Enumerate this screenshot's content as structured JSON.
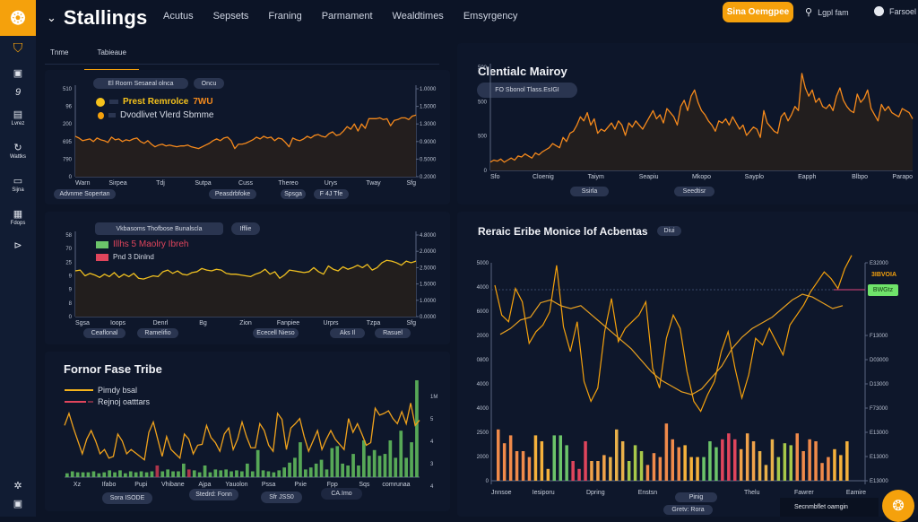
{
  "app": {
    "brand": "Stallings",
    "nav": [
      "Acutus",
      "Sepsets",
      "Franing",
      "Parmament",
      "Wealdtimes",
      "Emsyrgency"
    ],
    "cta_label": "Sina Oemgpee",
    "top_links": [
      {
        "icon": "location-icon",
        "label": "Lgpl fam"
      },
      {
        "icon": "user-icon",
        "label": "Farsoel"
      }
    ],
    "colors": {
      "accent": "#f5a10c",
      "bg": "#0c1426",
      "panel": "#0e172b",
      "sidebar": "#111c33",
      "green": "#6fe36a",
      "red": "#e0455c"
    }
  },
  "sidebar": {
    "items": [
      {
        "icon": "shield-icon",
        "label": ""
      },
      {
        "icon": "briefcase-icon",
        "label": ""
      },
      {
        "icon": "nine-icon",
        "label": ""
      },
      {
        "icon": "document-icon",
        "label": "Lvrez"
      },
      {
        "icon": "refresh-icon",
        "label": "Wattks"
      },
      {
        "icon": "monitor-icon",
        "label": "Sijna"
      },
      {
        "icon": "grid-icon",
        "label": "Fdops"
      },
      {
        "icon": "play-icon",
        "label": ""
      }
    ],
    "bottom": [
      {
        "icon": "settings-icon"
      },
      {
        "icon": "briefcase-icon"
      }
    ]
  },
  "tabs": [
    {
      "label": "Tnme",
      "active": false
    },
    {
      "label": "Tabieaue",
      "active": true
    }
  ],
  "panels": {
    "p1": {
      "chips_top": [
        "El Roorn Sesaeal olnca",
        "Oncu"
      ],
      "chips_bottom": [
        "Advnme Sopertan",
        "Peasdrbfoke",
        "Spsga",
        "F 4J Tfe"
      ]
    },
    "p2": {
      "chips_top": [
        "Vkbasoms Thofbose Bunalscla",
        "Ifflie"
      ],
      "chips_bottom": [
        "Ceaflonal",
        "Ramelifio",
        "Ececell Nieso",
        "Aks Il",
        "Rasuel"
      ]
    },
    "p3": {
      "title": "Fornor Fase Tribe",
      "chips_bottom": [
        "Sora ISODE",
        "Stedrd: Fonn",
        "Sfr JSS0",
        "CA.Imo"
      ]
    },
    "p4": {
      "title": "Clentialc Mairoy",
      "chip": "FO  Sbonol Tlass.EsIGI",
      "chips_bottom": [
        "Ssirla",
        "Seedtisr"
      ]
    },
    "p5": {
      "title": "Reraic Eribe Monice lof Acbentas",
      "badge": "Diui",
      "tag_green": "BWGtz",
      "tag_orange": "3IBVOIA",
      "chips_bottom": [
        "Pinig",
        "Gretv: Rora"
      ]
    }
  },
  "toast": {
    "label": "Secnmbflet oamgin"
  },
  "chart_data": [
    {
      "type": "area",
      "title": "",
      "legend": [
        {
          "name": "Prest Remrolce",
          "suffix": "7WU",
          "color": "#f5c21c"
        },
        {
          "name": "Dvodlivet Vlerd Sbmme",
          "color": "#f5a10c"
        }
      ],
      "categories": [
        "Warn",
        "Sirpea",
        "Tdj",
        "Sutpa",
        "Cuss",
        "Thereo",
        "Urys",
        "Tway",
        "Sfg"
      ],
      "y_left_ticks": [
        "510",
        "96",
        "200",
        "695",
        "790",
        "0"
      ],
      "y_right_ticks": [
        "1.0000",
        "1.5000",
        "1.3000",
        "0.9000",
        "0.5000",
        "0.2000"
      ],
      "ylim": [
        0,
        100
      ],
      "series": [
        {
          "name": "Prest Remrolce",
          "color": "#f5891c",
          "values": [
            46,
            44,
            41,
            42,
            43,
            40,
            44,
            42,
            41,
            39,
            45,
            42,
            43,
            40,
            42,
            41,
            43,
            44,
            40,
            38,
            41,
            37,
            34,
            36,
            37,
            35,
            36,
            35,
            34,
            35,
            35,
            36,
            34,
            33,
            32,
            34,
            36,
            38,
            41,
            43,
            41,
            44,
            45,
            41,
            32,
            37,
            37,
            38,
            40,
            42,
            45,
            43,
            46,
            44,
            45,
            41,
            44,
            43,
            39,
            34,
            44,
            42,
            41,
            43,
            46,
            44,
            47,
            48,
            46,
            45,
            49,
            51,
            47,
            48,
            52,
            57,
            54,
            60,
            52,
            60,
            55,
            66,
            66,
            66,
            67,
            65,
            66,
            58,
            64,
            65,
            67,
            67,
            65,
            69,
            70
          ]
        }
      ]
    },
    {
      "type": "area",
      "title": "",
      "legend": [
        {
          "name": "Illhs 5 Maolry Ibreh",
          "color": "#6cc46a"
        },
        {
          "name": "Pnd 3 Dinlnd",
          "color": "#e0455c"
        }
      ],
      "categories": [
        "Sgsa",
        "Ioops",
        "Denrl",
        "Bg",
        "Zion",
        "Fanpiee",
        "Urprs",
        "Tzpa",
        "Sfg"
      ],
      "y_left_ticks": [
        "58",
        "70",
        "25",
        "9",
        "9",
        "8",
        "0"
      ],
      "y_right_ticks": [
        "4.8000",
        "2.0000",
        "2.5000",
        "1.5000",
        "1.0000",
        "0.0000"
      ],
      "ylim": [
        0,
        100
      ],
      "series": [
        {
          "name": "Illhs 5 Maolry Ibreh",
          "color": "#f0c020",
          "values": [
            56,
            57,
            50,
            53,
            51,
            48,
            52,
            49,
            54,
            48,
            52,
            49,
            53,
            47,
            46,
            48,
            50,
            49,
            55,
            57,
            53,
            56,
            52,
            51,
            54,
            55,
            59,
            57,
            56,
            58,
            57,
            53,
            52,
            52,
            51,
            50,
            49,
            52,
            54,
            58,
            52,
            55,
            47,
            51,
            57,
            56,
            55,
            54,
            55,
            60,
            55,
            52,
            62,
            58,
            56,
            61,
            58,
            60,
            63,
            60,
            64,
            57,
            60,
            66,
            69,
            68,
            66,
            63,
            68,
            66,
            68
          ]
        }
      ]
    },
    {
      "type": "bar+line",
      "title": "Fornor Fase Tribe",
      "legend": [
        {
          "name": "Pimdy bsal",
          "color": "#f5b31c"
        },
        {
          "name": "Rejnoj oatttars",
          "color": "#e0455c"
        }
      ],
      "categories": [
        "Xz",
        "Ifabo",
        "Pupi",
        "Vhibane",
        "Ajpa",
        "Yauolon",
        "Pssa",
        "Pxie",
        "Fpp",
        "Sqs",
        "comrunaa"
      ],
      "y_right_ticks": [
        "1M",
        "5",
        "4",
        "3",
        "4"
      ],
      "ylim": [
        0,
        100
      ],
      "series": [
        {
          "name": "Pimdy bsal",
          "color": "#f0a21c",
          "values": [
            58,
            72,
            55,
            40,
            25,
            42,
            52,
            40,
            25,
            30,
            20,
            22,
            48,
            40,
            25,
            30,
            26,
            22,
            18,
            50,
            62,
            42,
            22,
            45,
            30,
            25,
            20,
            48,
            42,
            25,
            35,
            36,
            58,
            44,
            38,
            28,
            48,
            55,
            30,
            42,
            62,
            45,
            32,
            32,
            60,
            52,
            35,
            28,
            72,
            65,
            30,
            55,
            60,
            66,
            45,
            28,
            40,
            52,
            30,
            42,
            52,
            42,
            36,
            30,
            66,
            50,
            60,
            48,
            35,
            38,
            78,
            70,
            72,
            75,
            66,
            60,
            74,
            60,
            84,
            58,
            64
          ]
        },
        {
          "name": "Volume",
          "color": "#6cc46a",
          "values": [
            4,
            6,
            5,
            5,
            5,
            6,
            4,
            5,
            7,
            5,
            7,
            4,
            6,
            5,
            6,
            5,
            6,
            12,
            6,
            8,
            6,
            6,
            14,
            8,
            7,
            5,
            12,
            5,
            8,
            7,
            8,
            6,
            7,
            6,
            14,
            6,
            28,
            7,
            6,
            5,
            7,
            10,
            15,
            20,
            36,
            8,
            10,
            14,
            18,
            8,
            30,
            32,
            14,
            12,
            24,
            12,
            38,
            22,
            28,
            22,
            24,
            38,
            20,
            48,
            20,
            36,
            100
          ]
        }
      ]
    },
    {
      "type": "area",
      "title": "Clentialc Mairoy",
      "categories": [
        "Sfo",
        "Cloenig",
        "Taiym",
        "Seapiu",
        "Mkopo",
        "Sayplo",
        "Eapph",
        "Blbpo",
        "Parapo"
      ],
      "y_left_ticks": [
        "500",
        "500",
        "500",
        "0"
      ],
      "ylim": [
        0,
        100
      ],
      "series": [
        {
          "name": "Clentialc Mairoy",
          "color": "#f5891c",
          "values": [
            8,
            10,
            9,
            11,
            8,
            10,
            12,
            10,
            14,
            13,
            16,
            14,
            12,
            17,
            15,
            18,
            20,
            22,
            26,
            24,
            22,
            32,
            28,
            36,
            38,
            44,
            52,
            48,
            56,
            44,
            50,
            36,
            40,
            38,
            42,
            46,
            40,
            48,
            44,
            34,
            46,
            42,
            48,
            44,
            40,
            46,
            52,
            58,
            50,
            54,
            46,
            60,
            56,
            52,
            44,
            62,
            68,
            58,
            72,
            78,
            66,
            58,
            54,
            48,
            44,
            38,
            48,
            46,
            50,
            44,
            52,
            46,
            40,
            44,
            34,
            38,
            42,
            40,
            32,
            58,
            46,
            42,
            38,
            36,
            52,
            56,
            48,
            54,
            62,
            58,
            94,
            80,
            72,
            78,
            66,
            70,
            62,
            60,
            64,
            58,
            72,
            80,
            68,
            62,
            58,
            56,
            74,
            66,
            70,
            78,
            60,
            54,
            48,
            64,
            58,
            62,
            56,
            54,
            52,
            60,
            58,
            56,
            50
          ]
        }
      ]
    },
    {
      "type": "bar+line",
      "title": "Reraic Eribe Monice lof Acbentas",
      "categories": [
        "Jnnsoe",
        "Iesiporu",
        "Dpring",
        "Enstsn",
        "Pinig",
        "Thelu",
        "Fawrer",
        "Eamire"
      ],
      "y_left_ticks": [
        "5000",
        "4000",
        "6000",
        "2000",
        "0800",
        "4000",
        "4000",
        "2500",
        "2000",
        "0"
      ],
      "y_right_ticks": [
        "E32000",
        "3IBVOIA",
        "BWGtz",
        "F13000",
        "D03000",
        "D13000",
        "F73000",
        "E13000",
        "E13000",
        "E13000"
      ],
      "ylim": [
        0,
        100
      ],
      "series": [
        {
          "name": "Price A",
          "color": "#f5a10c",
          "values": [
            80,
            62,
            58,
            78,
            70,
            45,
            52,
            56,
            64,
            92,
            55,
            40,
            58,
            22,
            10,
            18,
            52,
            72,
            46,
            54,
            58,
            62,
            70,
            30,
            18,
            48,
            62,
            54,
            28,
            10,
            4,
            14,
            22,
            40,
            52,
            30,
            12,
            26,
            48,
            44,
            54,
            46,
            38,
            56,
            62,
            68,
            76,
            82,
            88,
            84,
            78,
            90,
            98
          ]
        },
        {
          "name": "Price B",
          "color": "#e8a020",
          "values": [
            52,
            56,
            62,
            64,
            74,
            76,
            72,
            70,
            72,
            66,
            60,
            54,
            48,
            42,
            34,
            26,
            20,
            16,
            12,
            10,
            14,
            22,
            30,
            42,
            50,
            56,
            60,
            64,
            70,
            76,
            80,
            78,
            74,
            70,
            72
          ]
        },
        {
          "name": "Volume",
          "colors": "mixed",
          "values": [
            52,
            38,
            46,
            30,
            30,
            24,
            46,
            40,
            12,
            46,
            46,
            36,
            20,
            12,
            40,
            20,
            20,
            26,
            24,
            52,
            40,
            20,
            36,
            30,
            16,
            28,
            24,
            58,
            42,
            34,
            36,
            24,
            24,
            24,
            40,
            34,
            42,
            48,
            42,
            32,
            48,
            40,
            30,
            16,
            42,
            24,
            38,
            36,
            48,
            30,
            42,
            40,
            18,
            24,
            32,
            26,
            40
          ]
        }
      ]
    }
  ]
}
